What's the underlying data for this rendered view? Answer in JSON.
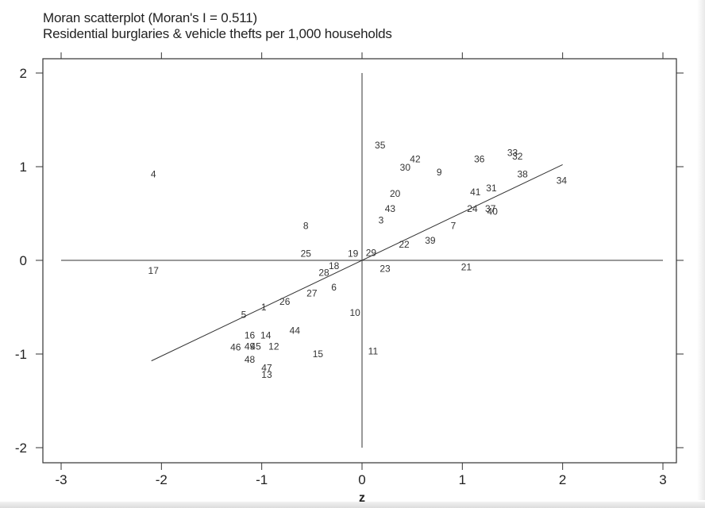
{
  "chart_data": {
    "type": "scatter",
    "title": "Moran scatterplot (Moran's I = 0.511)",
    "subtitle": "Residential burglaries & vehicle thefts per 1,000 households",
    "xlabel": "z",
    "ylabel": "",
    "xlim": [
      -3,
      3
    ],
    "ylim": [
      -2,
      2
    ],
    "xticks": [
      "-3",
      "-2",
      "-1",
      "0",
      "1",
      "2",
      "3"
    ],
    "yticks": [
      "2",
      "1",
      "0",
      "-1",
      "-2"
    ],
    "xtick_values": [
      -3,
      -2,
      -1,
      0,
      1,
      2,
      3
    ],
    "ytick_values": [
      2,
      1,
      0,
      -1,
      -2
    ],
    "fit_line": {
      "slope": 0.511,
      "x_range": [
        -2.1,
        2.0
      ]
    },
    "reference_lines": {
      "x": 0,
      "y": 0
    },
    "grid": false,
    "points": [
      {
        "label": "1",
        "x": -0.98,
        "y": -0.5
      },
      {
        "label": "3",
        "x": 0.19,
        "y": 0.43
      },
      {
        "label": "4",
        "x": -2.08,
        "y": 0.92
      },
      {
        "label": "5",
        "x": -1.18,
        "y": -0.58
      },
      {
        "label": "6",
        "x": -0.28,
        "y": -0.29
      },
      {
        "label": "7",
        "x": 0.91,
        "y": 0.37
      },
      {
        "label": "8",
        "x": -0.56,
        "y": 0.37
      },
      {
        "label": "9",
        "x": 0.77,
        "y": 0.94
      },
      {
        "label": "10",
        "x": -0.07,
        "y": -0.56
      },
      {
        "label": "11",
        "x": 0.11,
        "y": -0.97
      },
      {
        "label": "12",
        "x": -0.88,
        "y": -0.92
      },
      {
        "label": "13",
        "x": -0.95,
        "y": -1.22
      },
      {
        "label": "14",
        "x": -0.96,
        "y": -0.8
      },
      {
        "label": "15",
        "x": -0.44,
        "y": -1.0
      },
      {
        "label": "16",
        "x": -1.12,
        "y": -0.8
      },
      {
        "label": "17",
        "x": -2.08,
        "y": -0.11
      },
      {
        "label": "18",
        "x": -0.28,
        "y": -0.06
      },
      {
        "label": "19",
        "x": -0.09,
        "y": 0.07
      },
      {
        "label": "20",
        "x": 0.33,
        "y": 0.71
      },
      {
        "label": "21",
        "x": 1.04,
        "y": -0.07
      },
      {
        "label": "22",
        "x": 0.42,
        "y": 0.17
      },
      {
        "label": "23",
        "x": 0.23,
        "y": -0.09
      },
      {
        "label": "24",
        "x": 1.1,
        "y": 0.55
      },
      {
        "label": "25",
        "x": -0.56,
        "y": 0.07
      },
      {
        "label": "26",
        "x": -0.77,
        "y": -0.44
      },
      {
        "label": "27",
        "x": -0.5,
        "y": -0.35
      },
      {
        "label": "28",
        "x": -0.38,
        "y": -0.13
      },
      {
        "label": "29",
        "x": 0.09,
        "y": 0.08
      },
      {
        "label": "30",
        "x": 0.43,
        "y": 0.99
      },
      {
        "label": "31",
        "x": 1.29,
        "y": 0.77
      },
      {
        "label": "32",
        "x": 1.55,
        "y": 1.11
      },
      {
        "label": "33",
        "x": 1.5,
        "y": 1.15
      },
      {
        "label": "34",
        "x": 1.99,
        "y": 0.85
      },
      {
        "label": "35",
        "x": 0.18,
        "y": 1.23
      },
      {
        "label": "36",
        "x": 1.17,
        "y": 1.08
      },
      {
        "label": "37",
        "x": 1.28,
        "y": 0.55
      },
      {
        "label": "38",
        "x": 1.6,
        "y": 0.92
      },
      {
        "label": "39",
        "x": 0.68,
        "y": 0.21
      },
      {
        "label": "40",
        "x": 1.3,
        "y": 0.52
      },
      {
        "label": "41",
        "x": 1.13,
        "y": 0.73
      },
      {
        "label": "42",
        "x": 0.53,
        "y": 1.08
      },
      {
        "label": "43",
        "x": 0.28,
        "y": 0.55
      },
      {
        "label": "44",
        "x": -0.67,
        "y": -0.75
      },
      {
        "label": "45",
        "x": -1.06,
        "y": -0.92
      },
      {
        "label": "46",
        "x": -1.26,
        "y": -0.93
      },
      {
        "label": "47",
        "x": -0.95,
        "y": -1.15
      },
      {
        "label": "48",
        "x": -1.12,
        "y": -1.06
      },
      {
        "label": "49",
        "x": -1.12,
        "y": -0.92
      }
    ]
  }
}
